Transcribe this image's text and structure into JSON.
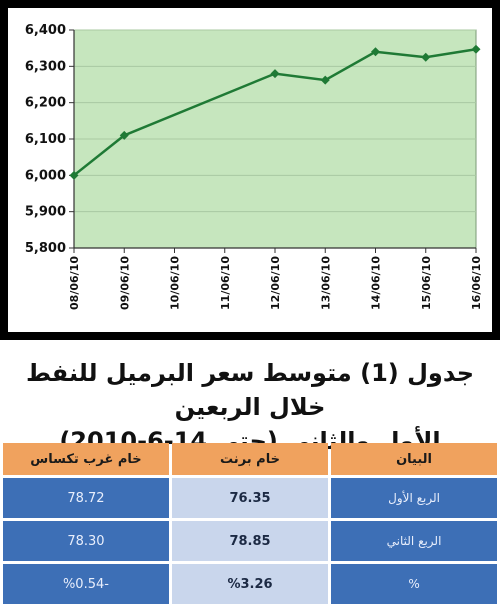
{
  "chart_data": {
    "type": "line",
    "x": [
      "08/06/10",
      "09/06/10",
      "10/06/10",
      "11/06/10",
      "12/06/10",
      "13/06/10",
      "14/06/10",
      "15/06/10",
      "16/06/10"
    ],
    "series": [
      {
        "points": [
          {
            "x": "08/06/10",
            "y": 6000
          },
          {
            "x": "09/06/10",
            "y": 6110
          },
          {
            "x": "12/06/10",
            "y": 6280
          },
          {
            "x": "13/06/10",
            "y": 6262
          },
          {
            "x": "14/06/10",
            "y": 6340
          },
          {
            "x": "15/06/10",
            "y": 6325
          },
          {
            "x": "16/06/10",
            "y": 6347
          }
        ]
      }
    ],
    "yticks": [
      "5,800",
      "5,900",
      "6,000",
      "6,100",
      "6,200",
      "6,300",
      "6,400"
    ],
    "ylim": [
      5800,
      6400
    ],
    "grid": true,
    "colors": {
      "plot_bg": "#c6e6be",
      "line": "#1f7a35",
      "grid": "#a9c9a2"
    }
  },
  "caption": {
    "line1": "جدول (1) متوسط سعر البرميل للنفط خلال الربعين",
    "line2": "الأول والثاني (حتى 14-6-2010)"
  },
  "table": {
    "headers": [
      "البيان",
      "خام برنت",
      "خام غرب تكساس"
    ],
    "rows": [
      [
        "الربع الأول",
        "76.35",
        "78.72"
      ],
      [
        "الربع الثاني",
        "78.85",
        "78.30"
      ],
      [
        "%",
        "%3.26",
        "-%0.54"
      ]
    ],
    "colors": {
      "header": "#f0a25e",
      "label_cell": "#3d6fb6",
      "brent_cell": "#c9d6ec",
      "wti_cell": "#3d6fb6"
    }
  }
}
